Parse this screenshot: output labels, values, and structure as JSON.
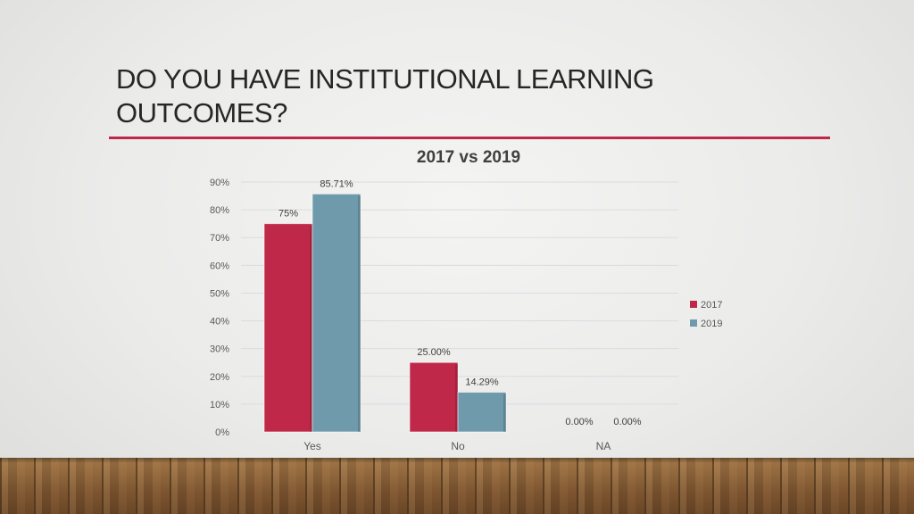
{
  "slide": {
    "title": "DO YOU HAVE INSTITUTIONAL LEARNING OUTCOMES?"
  },
  "colors": {
    "accent_rule": "#c0284a",
    "series_2017": "#c0284a",
    "series_2019": "#6f9aab"
  },
  "chart_data": {
    "type": "bar",
    "title": "2017 vs 2019",
    "xlabel": "",
    "ylabel": "",
    "categories": [
      "Yes",
      "No",
      "NA"
    ],
    "series": [
      {
        "name": "2017",
        "values": [
          75,
          25,
          0
        ],
        "labels": [
          "75%",
          "25.00%",
          "0.00%"
        ],
        "color": "#c0284a"
      },
      {
        "name": "2019",
        "values": [
          85.71,
          14.29,
          0
        ],
        "labels": [
          "85.71%",
          "14.29%",
          "0.00%"
        ],
        "color": "#6f9aab"
      }
    ],
    "ylim": [
      0,
      90
    ],
    "yticks": [
      0,
      10,
      20,
      30,
      40,
      50,
      60,
      70,
      80,
      90
    ],
    "ytick_labels": [
      "0%",
      "10%",
      "20%",
      "30%",
      "40%",
      "50%",
      "60%",
      "70%",
      "80%",
      "90%"
    ],
    "grid": true,
    "legend": "right"
  }
}
